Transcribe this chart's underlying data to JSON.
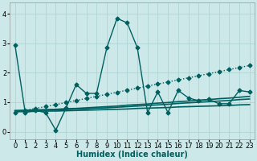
{
  "xlabel": "Humidex (Indice chaleur)",
  "ylabel": "",
  "bg_color": "#cce8e8",
  "line_color": "#006060",
  "grid_color": "#b0d4d4",
  "xlim": [
    -0.5,
    23.5
  ],
  "ylim": [
    -0.25,
    4.4
  ],
  "xticks": [
    0,
    1,
    2,
    3,
    4,
    5,
    6,
    7,
    8,
    9,
    10,
    11,
    12,
    13,
    14,
    15,
    16,
    17,
    18,
    19,
    20,
    21,
    22,
    23
  ],
  "yticks": [
    0,
    1,
    2,
    3,
    4
  ],
  "series_dotted": [
    0.65,
    0.72,
    0.79,
    0.85,
    0.92,
    0.99,
    1.06,
    1.13,
    1.2,
    1.27,
    1.34,
    1.41,
    1.48,
    1.55,
    1.62,
    1.69,
    1.76,
    1.83,
    1.9,
    1.97,
    2.04,
    2.11,
    2.18,
    2.25
  ],
  "series_jagged": [
    2.95,
    0.65,
    0.72,
    0.65,
    0.05,
    0.8,
    1.6,
    1.3,
    1.3,
    2.85,
    3.85,
    3.7,
    2.85,
    0.65,
    1.35,
    0.65,
    1.4,
    1.15,
    1.05,
    1.1,
    0.95,
    0.95,
    1.4,
    1.35
  ],
  "series_flat1": [
    0.68,
    0.68,
    0.69,
    0.7,
    0.7,
    0.71,
    0.72,
    0.73,
    0.74,
    0.75,
    0.76,
    0.77,
    0.79,
    0.8,
    0.81,
    0.82,
    0.84,
    0.85,
    0.86,
    0.87,
    0.88,
    0.89,
    0.91,
    0.92
  ],
  "series_flat2": [
    0.7,
    0.71,
    0.72,
    0.73,
    0.74,
    0.75,
    0.77,
    0.78,
    0.8,
    0.81,
    0.83,
    0.85,
    0.87,
    0.89,
    0.91,
    0.93,
    0.96,
    0.98,
    1.0,
    1.02,
    1.04,
    1.06,
    1.09,
    1.11
  ],
  "series_flat3": [
    0.72,
    0.73,
    0.74,
    0.75,
    0.76,
    0.78,
    0.79,
    0.81,
    0.83,
    0.85,
    0.87,
    0.9,
    0.92,
    0.94,
    0.97,
    0.99,
    1.02,
    1.04,
    1.07,
    1.09,
    1.12,
    1.14,
    1.17,
    1.2
  ],
  "marker": "D",
  "marker_size": 2.5,
  "lw_main": 1.0,
  "lw_flat": 1.2,
  "font_size_label": 7,
  "font_size_tick": 6
}
